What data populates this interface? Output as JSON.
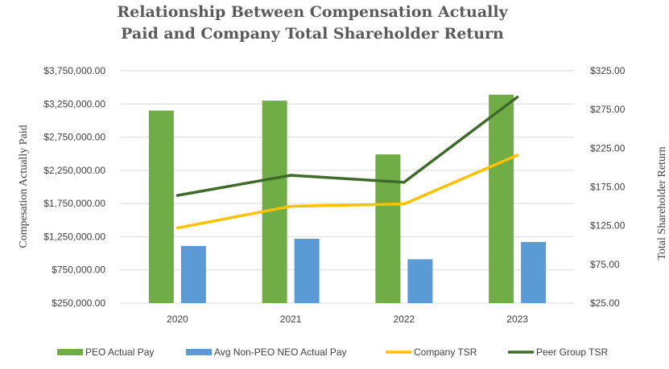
{
  "chart_data": {
    "type": "bar",
    "title_line1": "Relationship Between Compensation Actually",
    "title_line2": "Paid and Company Total Shareholder Return",
    "ylabel_left": "Compesation Actually Paid",
    "ylabel_right": "Total Shareholder Return",
    "categories": [
      "2020",
      "2021",
      "2022",
      "2023"
    ],
    "left_axis": {
      "ylim": [
        250000,
        3750000
      ],
      "ticks": [
        250000,
        750000,
        1250000,
        1750000,
        2250000,
        2750000,
        3250000,
        3750000
      ],
      "tick_labels": [
        "$250,000.00",
        "$750,000.00",
        "$1,250,000.00",
        "$1,750,000.00",
        "$2,250,000.00",
        "$2,750,000.00",
        "$3,250,000.00",
        "$3,750,000.00"
      ]
    },
    "right_axis": {
      "ylim": [
        25,
        325
      ],
      "ticks": [
        25,
        75,
        125,
        175,
        225,
        275,
        325
      ],
      "tick_labels": [
        "$25.00",
        "$75.00",
        "$125.00",
        "$175.00",
        "$225.00",
        "$275.00",
        "$325.00"
      ]
    },
    "bar_series": [
      {
        "name": "PEO Actual Pay",
        "color": "#70ad47",
        "values": [
          3150000,
          3300000,
          2490000,
          3390000
        ]
      },
      {
        "name": "Avg Non-PEO NEO Actual Pay",
        "color": "#5b9bd5",
        "values": [
          1110000,
          1220000,
          910000,
          1170000
        ]
      }
    ],
    "line_series": [
      {
        "name": "Company TSR",
        "color": "#ffc000",
        "axis": "right",
        "values": [
          122,
          150,
          153,
          216
        ]
      },
      {
        "name": "Peer Group TSR",
        "color": "#3e6b2a",
        "axis": "right",
        "values": [
          164,
          190,
          181,
          291
        ]
      }
    ],
    "grid": true,
    "legend_position": "bottom"
  }
}
